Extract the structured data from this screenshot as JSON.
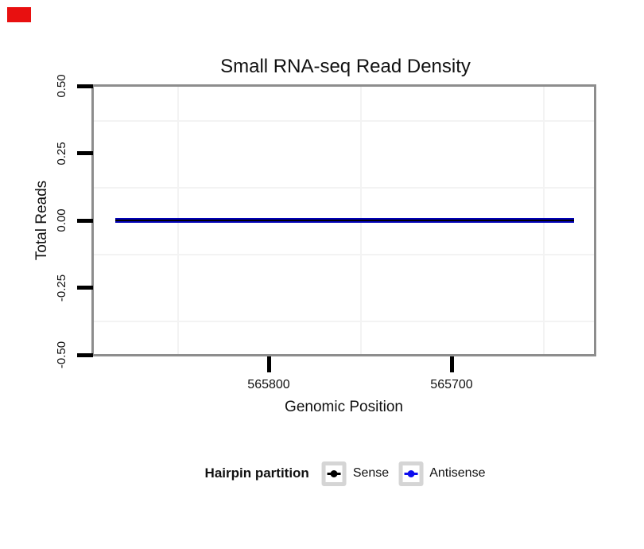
{
  "chart": {
    "title": "Small RNA-seq Read Density",
    "xlabel": "Genomic Position",
    "ylabel": "Total Reads",
    "y_tick_labels": [
      "0.50",
      "0.25",
      "0.00",
      "-0.25",
      "-0.50"
    ],
    "x_tick_labels": [
      "565800",
      "565700"
    ]
  },
  "legend": {
    "title": "Hairpin partition",
    "entries": [
      {
        "label": "Sense",
        "color": "#000000"
      },
      {
        "label": "Antisense",
        "color": "#0d0dee"
      }
    ]
  },
  "colors": {
    "panel_border": "#8d8d8d",
    "grid_minor": "#f3f3f3",
    "tick": "#000000",
    "text": "#111111",
    "data_line_under": "#0000b8",
    "data_line_over": "#000000",
    "legend_key_border": "#d5d5d5",
    "red_marker": "#e81010"
  },
  "chart_data": {
    "type": "line",
    "title": "Small RNA-seq Read Density",
    "xlabel": "Genomic Position",
    "ylabel": "Total Reads",
    "x_ticks": [
      565800,
      565700
    ],
    "x_axis_reversed": true,
    "x_range_approx": [
      565895,
      565625
    ],
    "ylim": [
      -0.5,
      0.5
    ],
    "y_ticks": [
      0.5,
      0.25,
      0.0,
      -0.25,
      -0.5
    ],
    "grid": "faint minor gridlines only, major gridlines white/invisible",
    "legend_title": "Hairpin partition",
    "legend_position": "bottom",
    "series": [
      {
        "name": "Sense",
        "color": "#000000",
        "x_extent": [
          565884,
          565633
        ],
        "y": [
          0,
          0
        ]
      },
      {
        "name": "Antisense",
        "color": "#0d0dee",
        "x_extent": [
          565884,
          565633
        ],
        "y": [
          0,
          0
        ]
      }
    ]
  }
}
